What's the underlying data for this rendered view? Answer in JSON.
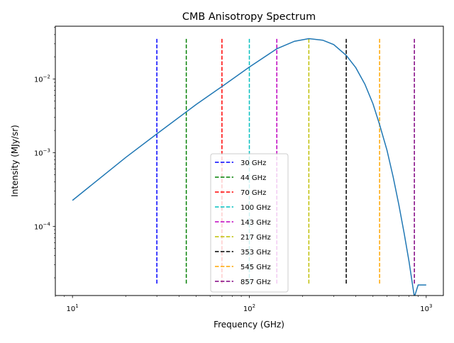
{
  "chart_data": {
    "type": "line",
    "title": "CMB Anisotropy Spectrum",
    "xlabel": "Frequency (GHz)",
    "ylabel": "Intensity (MJy/sr)",
    "xscale": "log",
    "yscale": "log",
    "xlim": [
      8,
      1250
    ],
    "ylim": [
      1.15e-05,
      0.052
    ],
    "x_ticks": [
      {
        "value": 10,
        "base": "10",
        "exp": "1"
      },
      {
        "value": 100,
        "base": "10",
        "exp": "2"
      },
      {
        "value": 1000,
        "base": "10",
        "exp": "3"
      }
    ],
    "y_ticks": [
      {
        "value": 0.0001,
        "base": "10",
        "exp": "−4"
      },
      {
        "value": 0.001,
        "base": "10",
        "exp": "−3"
      },
      {
        "value": 0.01,
        "base": "10",
        "exp": "−2"
      }
    ],
    "grid": false,
    "legend_position": "lower-center",
    "series": [
      {
        "color": "#1f77b4",
        "x": [
          10,
          20,
          30,
          50,
          70,
          100,
          143,
          180,
          217,
          260,
          300,
          353,
          400,
          450,
          500,
          545,
          600,
          650,
          700,
          750,
          800,
          857,
          900,
          950,
          1000
        ],
        "y": [
          0.000225,
          0.00086,
          0.0018,
          0.0045,
          0.0079,
          0.0145,
          0.0257,
          0.0325,
          0.0353,
          0.0336,
          0.0293,
          0.0209,
          0.0142,
          0.0085,
          0.0046,
          0.0024,
          0.00108,
          0.00047,
          0.000197,
          8.1e-05,
          3.3e-05,
          1.1e-05,
          1.6e-05,
          1.6e-05,
          1.6e-05
        ]
      }
    ],
    "vlines": [
      {
        "name": "30 GHz",
        "x": 30,
        "color": "#0000ff"
      },
      {
        "name": "44 GHz",
        "x": 44,
        "color": "#008000"
      },
      {
        "name": "70 GHz",
        "x": 70,
        "color": "#ff0000"
      },
      {
        "name": "100 GHz",
        "x": 100,
        "color": "#00bfbf"
      },
      {
        "name": "143 GHz",
        "x": 143,
        "color": "#bf00bf"
      },
      {
        "name": "217 GHz",
        "x": 217,
        "color": "#bfbf00"
      },
      {
        "name": "353 GHz",
        "x": 353,
        "color": "#000000"
      },
      {
        "name": "545 GHz",
        "x": 545,
        "color": "#ffa500"
      },
      {
        "name": "857 GHz",
        "x": 857,
        "color": "#800080"
      }
    ],
    "vline_range": [
      1.6e-05,
      0.035
    ]
  }
}
